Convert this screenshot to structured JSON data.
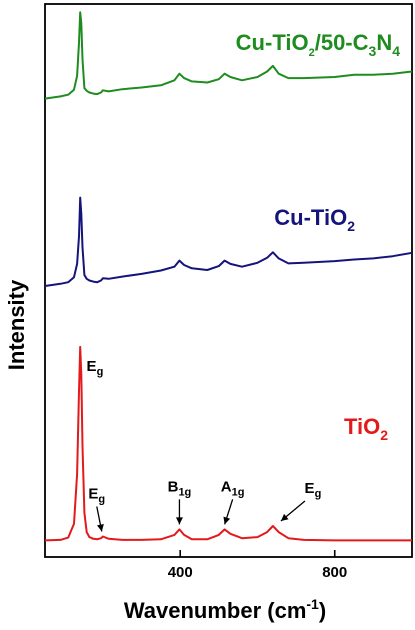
{
  "chart_data": {
    "type": "line",
    "title": "",
    "xlabel": "Wavenumber (cm",
    "xlabel_sup": "-1",
    "xlabel_end": ")",
    "ylabel": "Intensity",
    "xlim": [
      50,
      1000
    ],
    "ylim": [
      0,
      1
    ],
    "xticks": [
      "400",
      "800"
    ],
    "xtick_values": [
      400,
      800
    ],
    "grid": false,
    "series": [
      {
        "name": "Cu-TiO2/50-C3N4",
        "label_parts": {
          "a": "Cu-TiO",
          "b": "2",
          "c": "/50-C",
          "d": "3",
          "e": "N",
          "f": "4"
        },
        "color": "#1e8c1e",
        "x": [
          50,
          90,
          110,
          125,
          133,
          138,
          141,
          144,
          147,
          152,
          158,
          165,
          175,
          185,
          195,
          200,
          215,
          250,
          300,
          350,
          385,
          398,
          410,
          430,
          470,
          500,
          515,
          530,
          560,
          600,
          625,
          640,
          655,
          680,
          720,
          800,
          850,
          900,
          950,
          1000
        ],
        "y": [
          0.829,
          0.833,
          0.836,
          0.845,
          0.87,
          0.93,
          0.985,
          0.965,
          0.9,
          0.848,
          0.843,
          0.84,
          0.838,
          0.837,
          0.84,
          0.844,
          0.842,
          0.846,
          0.849,
          0.853,
          0.862,
          0.874,
          0.866,
          0.86,
          0.858,
          0.864,
          0.874,
          0.868,
          0.862,
          0.868,
          0.878,
          0.888,
          0.874,
          0.866,
          0.866,
          0.868,
          0.872,
          0.872,
          0.874,
          0.878
        ]
      },
      {
        "name": "Cu-TiO2",
        "label_parts": {
          "a": "Cu-TiO",
          "b": "2"
        },
        "color": "#14147a",
        "x": [
          50,
          90,
          110,
          125,
          133,
          138,
          141,
          144,
          147,
          152,
          158,
          165,
          175,
          185,
          195,
          200,
          215,
          250,
          300,
          350,
          385,
          398,
          410,
          430,
          470,
          500,
          515,
          530,
          560,
          600,
          625,
          640,
          655,
          680,
          720,
          800,
          850,
          900,
          950,
          1000
        ],
        "y": [
          0.49,
          0.494,
          0.497,
          0.506,
          0.53,
          0.58,
          0.65,
          0.62,
          0.56,
          0.51,
          0.503,
          0.5,
          0.498,
          0.497,
          0.5,
          0.504,
          0.503,
          0.507,
          0.512,
          0.518,
          0.525,
          0.536,
          0.528,
          0.522,
          0.519,
          0.526,
          0.536,
          0.53,
          0.525,
          0.532,
          0.541,
          0.551,
          0.54,
          0.531,
          0.532,
          0.535,
          0.538,
          0.54,
          0.544,
          0.55
        ]
      },
      {
        "name": "TiO2",
        "label_parts": {
          "a": "TiO",
          "b": "2"
        },
        "color": "#e31a1c",
        "x": [
          50,
          90,
          110,
          125,
          133,
          138,
          141,
          144,
          147,
          152,
          158,
          165,
          175,
          185,
          195,
          200,
          215,
          250,
          300,
          350,
          385,
          398,
          410,
          430,
          470,
          500,
          515,
          530,
          560,
          600,
          625,
          640,
          655,
          680,
          720,
          800,
          850,
          900,
          950,
          1000
        ],
        "y": [
          0.03,
          0.031,
          0.035,
          0.06,
          0.15,
          0.3,
          0.38,
          0.33,
          0.2,
          0.08,
          0.045,
          0.036,
          0.033,
          0.032,
          0.034,
          0.037,
          0.033,
          0.031,
          0.031,
          0.032,
          0.04,
          0.05,
          0.04,
          0.032,
          0.032,
          0.04,
          0.05,
          0.042,
          0.034,
          0.036,
          0.045,
          0.056,
          0.045,
          0.034,
          0.031,
          0.03,
          0.03,
          0.03,
          0.03,
          0.03
        ]
      }
    ],
    "annotations": [
      {
        "main": "E",
        "sub": "g",
        "x": 143,
        "y": 0.38,
        "arrow": false
      },
      {
        "main": "E",
        "sub": "g",
        "x": 197,
        "y": 0.037,
        "arrow": true
      },
      {
        "main": "B",
        "sub": "1g",
        "x": 398,
        "y": 0.05,
        "arrow": true
      },
      {
        "main": "A",
        "sub": "1g",
        "x": 515,
        "y": 0.05,
        "arrow": true
      },
      {
        "main": "E",
        "sub": "g",
        "x": 640,
        "y": 0.056,
        "arrow": true
      }
    ]
  }
}
